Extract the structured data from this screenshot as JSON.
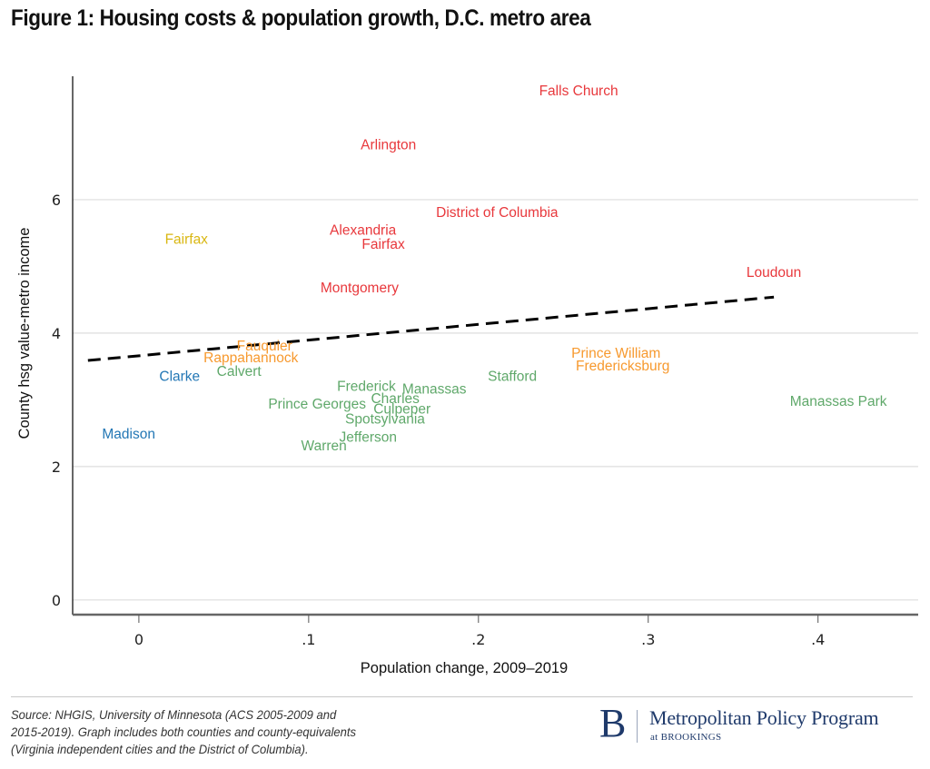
{
  "figure": {
    "title": "Figure 1: Housing costs & population growth, D.C. metro area",
    "source_lines": [
      "Source: NHGIS, University of Minnesota (ACS 2005-2009 and",
      "2015-2019). Graph includes both counties and county-equivalents",
      "(Virginia independent cities and the District of Columbia)."
    ],
    "logo": {
      "letter": "B",
      "main": "Metropolitan Policy Program",
      "sub": "at BROOKINGS"
    }
  },
  "colors": {
    "red": "#e8383c",
    "yellow": "#d9b712",
    "orange": "#f7992e",
    "green": "#5fa86a",
    "blue": "#2377b5",
    "grid": "#dddddd",
    "axis": "#333333",
    "trend": "#000000",
    "brand": "#1f3a6b"
  },
  "chart_data": {
    "type": "scatter",
    "title": "Figure 1: Housing costs & population growth, D.C. metro area",
    "xlabel": "Population change, 2009–2019",
    "ylabel": "County hsg value-metro income",
    "xlim": [
      -0.039,
      0.459
    ],
    "ylim": [
      -0.22,
      7.85
    ],
    "xticks": [
      0,
      0.1,
      0.2,
      0.3,
      0.4
    ],
    "xtick_labels": [
      "0",
      ".1",
      ".2",
      ".3",
      ".4"
    ],
    "yticks": [
      0,
      2,
      4,
      6
    ],
    "ytick_labels": [
      "0",
      "2",
      "4",
      "6"
    ],
    "grid": "horizontal",
    "marker": "label",
    "legend": "none",
    "points": [
      {
        "label": "Falls Church",
        "x": 0.259,
        "y": 7.63,
        "group": "red"
      },
      {
        "label": "Arlington",
        "x": 0.147,
        "y": 6.82,
        "group": "red"
      },
      {
        "label": "District of Columbia",
        "x": 0.211,
        "y": 5.81,
        "group": "red"
      },
      {
        "label": "Alexandria",
        "x": 0.132,
        "y": 5.54,
        "group": "red"
      },
      {
        "label": "Fairfax",
        "x": 0.144,
        "y": 5.33,
        "group": "red"
      },
      {
        "label": "Fairfax",
        "x": 0.028,
        "y": 5.41,
        "group": "yellow"
      },
      {
        "label": "Loudoun",
        "x": 0.374,
        "y": 4.91,
        "group": "red"
      },
      {
        "label": "Montgomery",
        "x": 0.13,
        "y": 4.68,
        "group": "red"
      },
      {
        "label": "Fauquier",
        "x": 0.074,
        "y": 3.81,
        "group": "orange"
      },
      {
        "label": "Rappahannock",
        "x": 0.066,
        "y": 3.63,
        "group": "orange"
      },
      {
        "label": "Prince William",
        "x": 0.281,
        "y": 3.7,
        "group": "orange"
      },
      {
        "label": "Fredericksburg",
        "x": 0.285,
        "y": 3.51,
        "group": "orange"
      },
      {
        "label": "Calvert",
        "x": 0.059,
        "y": 3.43,
        "group": "green"
      },
      {
        "label": "Clarke",
        "x": 0.024,
        "y": 3.35,
        "group": "blue"
      },
      {
        "label": "Stafford",
        "x": 0.22,
        "y": 3.35,
        "group": "green"
      },
      {
        "label": "Frederick",
        "x": 0.134,
        "y": 3.2,
        "group": "green"
      },
      {
        "label": "Manassas",
        "x": 0.174,
        "y": 3.16,
        "group": "green"
      },
      {
        "label": "Charles",
        "x": 0.151,
        "y": 3.02,
        "group": "green"
      },
      {
        "label": "Prince Georges",
        "x": 0.105,
        "y": 2.94,
        "group": "green"
      },
      {
        "label": "Culpeper",
        "x": 0.155,
        "y": 2.86,
        "group": "green"
      },
      {
        "label": "Spotsylvania",
        "x": 0.145,
        "y": 2.71,
        "group": "green"
      },
      {
        "label": "Manassas Park",
        "x": 0.412,
        "y": 2.98,
        "group": "green"
      },
      {
        "label": "Madison",
        "x": -0.006,
        "y": 2.49,
        "group": "blue"
      },
      {
        "label": "Jefferson",
        "x": 0.135,
        "y": 2.44,
        "group": "green"
      },
      {
        "label": "Warren",
        "x": 0.109,
        "y": 2.31,
        "group": "green"
      }
    ],
    "trend_line": {
      "style": "dashed",
      "x": [
        -0.03,
        0.374
      ],
      "y": [
        3.59,
        4.54
      ]
    }
  }
}
